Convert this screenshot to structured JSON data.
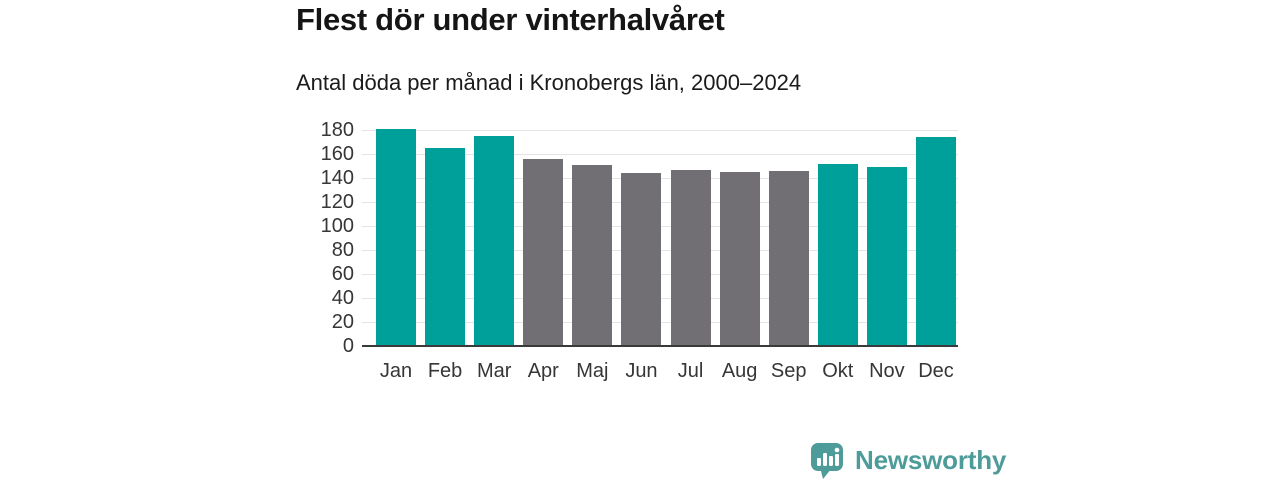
{
  "header": {
    "title": "Flest dör under vinterhalvåret",
    "subtitle": "Antal döda per månad i Kronobergs län, 2000–2024"
  },
  "chart_data": {
    "type": "bar",
    "title": "Flest dör under vinterhalvåret",
    "subtitle": "Antal döda per månad i Kronobergs län, 2000–2024",
    "categories": [
      "Jan",
      "Feb",
      "Mar",
      "Apr",
      "Maj",
      "Jun",
      "Jul",
      "Aug",
      "Sep",
      "Okt",
      "Nov",
      "Dec"
    ],
    "values": [
      181,
      165,
      175,
      156,
      151,
      144,
      147,
      145,
      146,
      152,
      149,
      174
    ],
    "highlight_months": [
      "Jan",
      "Feb",
      "Mar",
      "Okt",
      "Nov",
      "Dec"
    ],
    "xlabel": "",
    "ylabel": "",
    "ylim": [
      0,
      180
    ],
    "ytick_step": 20,
    "yticks": [
      0,
      20,
      40,
      60,
      80,
      100,
      120,
      140,
      160,
      180
    ],
    "grid": true,
    "legend": "none",
    "colors": {
      "highlight": "#00a09a",
      "other": "#716e74",
      "gridline": "#e4e4e4",
      "axis_line": "#3a3a3a",
      "tick_text": "#363636"
    }
  },
  "footer": {
    "brand": "Newsworthy",
    "brand_color": "#4d9c99",
    "logo_icon": "bar-chart-speech-bubble-icon"
  }
}
